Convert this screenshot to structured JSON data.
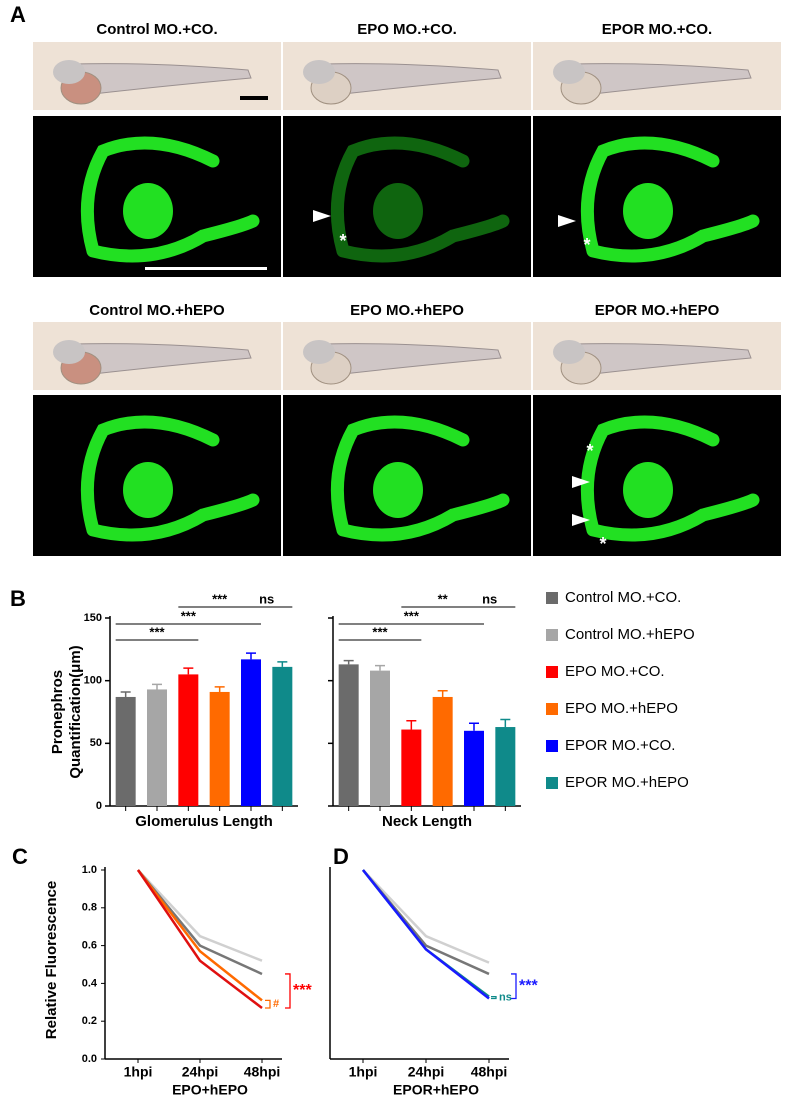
{
  "panel_labels": [
    "A",
    "B",
    "C",
    "D"
  ],
  "panel_a": {
    "titles": [
      "Control MO.+CO.",
      "EPO MO.+CO.",
      "EPOR MO.+CO.",
      "Control MO.+hEPO",
      "EPO MO.+hEPO",
      "EPOR MO.+hEPO"
    ],
    "asterisks": [
      "*",
      "*",
      "*",
      "*"
    ]
  },
  "chart_data": [
    {
      "type": "bar",
      "y_label": [
        "Pronephros",
        "Quantification(μm)"
      ],
      "categories": [
        "Glomerulus Length",
        "Neck Length"
      ],
      "ylim": [
        0,
        150
      ],
      "yticks": [
        0,
        50,
        100,
        150
      ],
      "series": [
        {
          "name": "Control MO.+CO.",
          "color": "#6b6b6b",
          "values": [
            87,
            113
          ],
          "errors": [
            4,
            3
          ]
        },
        {
          "name": "Control MO.+hEPO",
          "color": "#a6a6a6",
          "values": [
            93,
            108
          ],
          "errors": [
            4,
            4
          ]
        },
        {
          "name": "EPO MO.+CO.",
          "color": "#ff0000",
          "values": [
            105,
            61
          ],
          "errors": [
            5,
            7
          ]
        },
        {
          "name": "EPO MO.+hEPO",
          "color": "#ff6a00",
          "values": [
            91,
            87
          ],
          "errors": [
            4,
            5
          ]
        },
        {
          "name": "EPOR MO.+CO.",
          "color": "#0000ff",
          "values": [
            117,
            60
          ],
          "errors": [
            5,
            6
          ]
        },
        {
          "name": "EPOR MO.+hEPO",
          "color": "#0f8a8a",
          "values": [
            111,
            63
          ],
          "errors": [
            4,
            6
          ]
        }
      ],
      "annotations": [
        [
          "***",
          "***",
          "***",
          "ns"
        ],
        [
          "***",
          "***",
          "**",
          "ns"
        ]
      ]
    },
    {
      "type": "line",
      "categories": [
        "1hpi",
        "24hpi",
        "48hpi"
      ],
      "x_label": "EPO+hEPO",
      "y_label": "Relative Fluorescence",
      "ylim": [
        0,
        1
      ],
      "yticks": [
        {
          "value": 0,
          "label": "0.0"
        },
        {
          "value": 0.2,
          "label": "0.2"
        },
        {
          "value": 0.4,
          "label": "0.4"
        },
        {
          "value": 0.6,
          "label": "0.6"
        },
        {
          "value": 0.8,
          "label": "0.8"
        },
        {
          "value": 1,
          "label": "1.0"
        }
      ],
      "series": [
        {
          "color": "#d0d0d0",
          "values": [
            1,
            0.65,
            0.52
          ]
        },
        {
          "color": "#777777",
          "values": [
            1,
            0.6,
            0.45
          ]
        },
        {
          "color": "#ff6a00",
          "values": [
            1,
            0.57,
            0.31
          ]
        },
        {
          "color": "#e01010",
          "values": [
            1,
            0.52,
            0.27
          ]
        }
      ],
      "annotations": [
        {
          "text": "***",
          "color": "#ff0000"
        },
        {
          "text": "#",
          "color": "#ff6a00"
        }
      ]
    },
    {
      "type": "line",
      "categories": [
        "1hpi",
        "24hpi",
        "48hpi"
      ],
      "x_label": "EPOR+hEPO",
      "ylim": [
        0,
        1
      ],
      "series": [
        {
          "color": "#d0d0d0",
          "values": [
            1,
            0.65,
            0.51
          ]
        },
        {
          "color": "#777777",
          "values": [
            1,
            0.6,
            0.45
          ]
        },
        {
          "color": "#0f8a8a",
          "values": [
            1,
            0.58,
            0.33
          ]
        },
        {
          "color": "#1a1aff",
          "values": [
            1,
            0.58,
            0.32
          ]
        }
      ],
      "annotations": [
        {
          "text": "***",
          "color": "#1a1aff"
        },
        {
          "text": "ns",
          "color": "#0f8a8a"
        }
      ]
    }
  ]
}
